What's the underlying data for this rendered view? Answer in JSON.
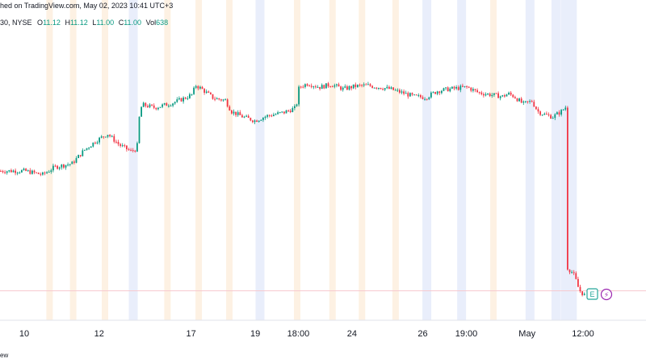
{
  "header": {
    "published": "hed on TradingView.com, May 02, 2023 10:41 UTC+3",
    "symbol_tail": "30, NYSE",
    "o_label": "O",
    "o_value": "11.12",
    "h_label": "H",
    "h_value": "11.12",
    "l_label": "L",
    "l_value": "11.00",
    "c_label": "C",
    "c_value": "11.00",
    "vol_label": "Vol",
    "vol_value": "638"
  },
  "footer": {
    "brand": "ew"
  },
  "markers": {
    "earnings": "E",
    "dividend": "⚡"
  },
  "colors": {
    "up": "#089981",
    "down": "#f23645",
    "session_pre": "#fdf1e3",
    "session_post": "#e9eefb",
    "price_line": "#f7c9cf",
    "marker_earn": "#26a69a",
    "marker_div": "#9c27b0"
  },
  "chart_data": {
    "type": "candlestick",
    "x_ticks": [
      {
        "label": "10",
        "pos": 0.0
      },
      {
        "label": "12",
        "pos": 0.127
      },
      {
        "label": "17",
        "pos": 0.283
      },
      {
        "label": "19",
        "pos": 0.392
      },
      {
        "label": "18:00",
        "pos": 0.465
      },
      {
        "label": "24",
        "pos": 0.556
      },
      {
        "label": "26",
        "pos": 0.676
      },
      {
        "label": "19:00",
        "pos": 0.75
      },
      {
        "label": "May",
        "pos": 0.853
      },
      {
        "label": "12:00",
        "pos": 0.948
      }
    ],
    "last_price": 11.0,
    "y_range": [
      10.9,
      13.7
    ],
    "price_path": [
      [
        0.0,
        12.34
      ],
      [
        0.03,
        12.3
      ],
      [
        0.05,
        12.38
      ],
      [
        0.08,
        12.42
      ],
      [
        0.1,
        12.56
      ],
      [
        0.12,
        12.66
      ],
      [
        0.14,
        12.74
      ],
      [
        0.16,
        12.62
      ],
      [
        0.18,
        12.55
      ],
      [
        0.19,
        12.58
      ],
      [
        0.195,
        13.0
      ],
      [
        0.2,
        13.05
      ],
      [
        0.22,
        13.02
      ],
      [
        0.25,
        13.07
      ],
      [
        0.27,
        13.12
      ],
      [
        0.283,
        13.16
      ],
      [
        0.29,
        13.26
      ],
      [
        0.3,
        13.22
      ],
      [
        0.32,
        13.12
      ],
      [
        0.34,
        13.1
      ],
      [
        0.35,
        12.98
      ],
      [
        0.37,
        12.92
      ],
      [
        0.39,
        12.88
      ],
      [
        0.41,
        12.93
      ],
      [
        0.44,
        12.97
      ],
      [
        0.46,
        13.02
      ],
      [
        0.465,
        13.24
      ],
      [
        0.48,
        13.28
      ],
      [
        0.5,
        13.24
      ],
      [
        0.52,
        13.27
      ],
      [
        0.54,
        13.22
      ],
      [
        0.56,
        13.25
      ],
      [
        0.58,
        13.26
      ],
      [
        0.6,
        13.24
      ],
      [
        0.62,
        13.22
      ],
      [
        0.64,
        13.18
      ],
      [
        0.66,
        13.14
      ],
      [
        0.68,
        13.13
      ],
      [
        0.7,
        13.2
      ],
      [
        0.72,
        13.22
      ],
      [
        0.75,
        13.24
      ],
      [
        0.77,
        13.18
      ],
      [
        0.79,
        13.16
      ],
      [
        0.81,
        13.14
      ],
      [
        0.82,
        13.17
      ],
      [
        0.83,
        13.14
      ],
      [
        0.845,
        13.06
      ],
      [
        0.86,
        13.09
      ],
      [
        0.87,
        12.98
      ],
      [
        0.88,
        12.95
      ],
      [
        0.895,
        12.92
      ],
      [
        0.91,
        12.98
      ],
      [
        0.918,
        13.03
      ],
      [
        0.92,
        11.3
      ],
      [
        0.93,
        11.24
      ],
      [
        0.935,
        11.16
      ],
      [
        0.94,
        11.06
      ],
      [
        0.95,
        11.0
      ]
    ],
    "sessions": [
      {
        "pos": 0.043,
        "kind": "pre"
      },
      {
        "pos": 0.083,
        "kind": "pre"
      },
      {
        "pos": 0.137,
        "kind": "pre"
      },
      {
        "pos": 0.185,
        "kind": "post"
      },
      {
        "pos": 0.243,
        "kind": "pre"
      },
      {
        "pos": 0.296,
        "kind": "pre"
      },
      {
        "pos": 0.348,
        "kind": "pre"
      },
      {
        "pos": 0.4,
        "kind": "post"
      },
      {
        "pos": 0.463,
        "kind": "pre"
      },
      {
        "pos": 0.523,
        "kind": "pre"
      },
      {
        "pos": 0.573,
        "kind": "pre"
      },
      {
        "pos": 0.63,
        "kind": "pre"
      },
      {
        "pos": 0.683,
        "kind": "post"
      },
      {
        "pos": 0.742,
        "kind": "post"
      },
      {
        "pos": 0.796,
        "kind": "pre"
      },
      {
        "pos": 0.858,
        "kind": "post"
      },
      {
        "pos": 0.902,
        "kind": "post"
      }
    ]
  }
}
